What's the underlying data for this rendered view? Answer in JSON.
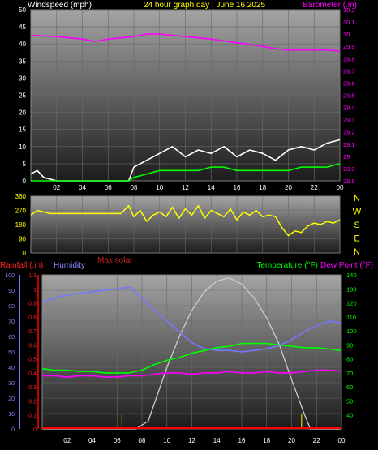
{
  "header": {
    "left_label": "Windspeed (mph)",
    "title": "24 hour graph day : June 16 2025",
    "right_label": "Barometer (.in)"
  },
  "middle": {
    "compass_labels": [
      "N",
      "W",
      "S",
      "E",
      "N"
    ],
    "max_solar_label": "Max solar"
  },
  "bottom_header": {
    "rainfall_label": "Rainfall (.in)",
    "humidity_label": "Humidity",
    "temperature_label": "Temperature (°F)",
    "dewpoint_label": "Dew Point (°F)"
  },
  "colors": {
    "background": "#000000",
    "windspeed": "#ffffff",
    "wind_avg": "#00ff00",
    "barometer": "#ff00ff",
    "direction": "#ffff00",
    "rain_axis": "#ff0000",
    "humidity": "#7777ff",
    "temperature": "#00ff00",
    "dewpoint": "#ff00ff",
    "solar": "#cccccc",
    "title": "#ffff00"
  },
  "chart_data": [
    {
      "type": "line",
      "panel": "top",
      "x_ticks": [
        "02",
        "04",
        "06",
        "08",
        "10",
        "12",
        "14",
        "16",
        "18",
        "20",
        "22",
        "00"
      ],
      "y_left": {
        "label": "Windspeed (mph)",
        "range": [
          0,
          50
        ],
        "ticks": [
          "0",
          "5",
          "10",
          "15",
          "20",
          "25",
          "30",
          "35",
          "40",
          "45",
          "50"
        ]
      },
      "y_right": {
        "label": "Barometer (.in)",
        "range": [
          28.8,
          30.2
        ],
        "ticks": [
          "28.8",
          "28.9",
          "29",
          "29.1",
          "29.2",
          "29.3",
          "29.4",
          "29.5",
          "29.6",
          "29.7",
          "29.8",
          "29.9",
          "30",
          "30.1",
          "30.2"
        ]
      },
      "series": [
        {
          "name": "Windspeed (mph)",
          "axis": "left",
          "x": [
            0.0,
            0.5,
            1.0,
            2.0,
            4.0,
            6.0,
            7.6,
            8.0,
            9.0,
            10.0,
            11.0,
            12.0,
            13.0,
            14.0,
            15.0,
            16.0,
            17.0,
            18.0,
            19.0,
            20.0,
            21.0,
            22.0,
            23.0,
            24.0
          ],
          "values": [
            2,
            3,
            1,
            0,
            0,
            0,
            0,
            4,
            6,
            8,
            10,
            7,
            9,
            8,
            10,
            7,
            9,
            8,
            6,
            9,
            10,
            9,
            11,
            12
          ]
        },
        {
          "name": "Wind average",
          "axis": "left",
          "x": [
            0,
            7.6,
            8,
            9,
            10,
            11,
            12,
            13,
            14,
            15,
            16,
            17,
            18,
            19,
            20,
            21,
            22,
            23,
            24
          ],
          "values": [
            0,
            0,
            1,
            2,
            3,
            3,
            3,
            3,
            4,
            4,
            3,
            3,
            3,
            3,
            3,
            4,
            4,
            4,
            5
          ]
        },
        {
          "name": "Barometer (.in)",
          "axis": "right",
          "x": [
            0,
            2,
            4,
            5,
            6,
            8,
            9,
            10,
            12,
            14,
            16,
            18,
            19,
            20,
            22,
            23,
            24
          ],
          "values": [
            29.99,
            29.98,
            29.96,
            29.94,
            29.96,
            29.98,
            30.0,
            30.0,
            29.98,
            29.96,
            29.93,
            29.9,
            29.88,
            29.87,
            29.87,
            29.87,
            29.86
          ]
        }
      ]
    },
    {
      "type": "line",
      "panel": "middle",
      "x_ticks": [
        "02",
        "04",
        "06",
        "08",
        "10",
        "12",
        "14",
        "16",
        "18",
        "20",
        "22",
        "00"
      ],
      "y_left": {
        "range": [
          0,
          360
        ],
        "ticks": [
          "0",
          "90",
          "180",
          "270",
          "360"
        ]
      },
      "series": [
        {
          "name": "Wind direction",
          "x": [
            0,
            0.5,
            1.5,
            3,
            5,
            7,
            7.6,
            8.0,
            8.5,
            9,
            9.5,
            10,
            10.5,
            11,
            11.5,
            12,
            12.5,
            13,
            13.5,
            14,
            14.5,
            15,
            15.5,
            16,
            16.5,
            17,
            17.5,
            18,
            18.5,
            19,
            19.5,
            20,
            20.5,
            21,
            21.5,
            22,
            22.5,
            23,
            23.5,
            24
          ],
          "values": [
            240,
            270,
            250,
            250,
            250,
            250,
            300,
            230,
            270,
            200,
            240,
            260,
            230,
            290,
            220,
            280,
            240,
            300,
            220,
            270,
            250,
            230,
            280,
            210,
            260,
            240,
            270,
            230,
            240,
            230,
            160,
            110,
            140,
            130,
            170,
            190,
            180,
            200,
            190,
            210
          ]
        }
      ]
    },
    {
      "type": "line",
      "panel": "bottom",
      "x_ticks": [
        "02",
        "04",
        "06",
        "08",
        "10",
        "12",
        "14",
        "16",
        "18",
        "20",
        "22",
        "00"
      ],
      "y_humidity": {
        "label": "Humidity",
        "range": [
          0,
          100
        ],
        "ticks": [
          "0",
          "10",
          "20",
          "30",
          "40",
          "50",
          "60",
          "70",
          "80",
          "90",
          "100"
        ]
      },
      "y_rain": {
        "label": "Rainfall (.in)",
        "range": [
          0,
          1.1
        ],
        "ticks": [
          "0",
          "0.1",
          "0.2",
          "0.3",
          "0.4",
          "0.5",
          "0.6",
          "0.7",
          "0.8",
          "0.9",
          "1",
          "1.1"
        ]
      },
      "y_temp": {
        "label": "Temperature (°F)",
        "range": [
          30,
          140
        ],
        "ticks": [
          "40",
          "50",
          "60",
          "70",
          "80",
          "90",
          "100",
          "110",
          "120",
          "130",
          "140"
        ]
      },
      "series": [
        {
          "name": "Humidity",
          "axis": "humidity",
          "x": [
            0,
            1,
            2,
            3,
            4,
            5,
            6,
            7,
            8,
            9,
            10,
            11,
            12,
            13,
            14,
            15,
            16,
            17,
            18,
            19,
            20,
            21,
            22,
            23,
            24
          ],
          "values": [
            82,
            85,
            87,
            88,
            89,
            90,
            91,
            92,
            85,
            77,
            70,
            63,
            56,
            52,
            51,
            51,
            50,
            51,
            52,
            54,
            58,
            63,
            67,
            70,
            69
          ]
        },
        {
          "name": "Temperature (°F)",
          "axis": "temp",
          "x": [
            0,
            1,
            2,
            3,
            4,
            5,
            6,
            7,
            8,
            9,
            10,
            11,
            12,
            13,
            14,
            15,
            16,
            17,
            18,
            19,
            20,
            21,
            22,
            23,
            24
          ],
          "values": [
            73,
            72,
            72,
            71,
            71,
            70,
            70,
            70,
            72,
            76,
            79,
            81,
            84,
            86,
            88,
            89,
            91,
            91,
            91,
            90,
            89,
            88,
            88,
            87,
            86
          ]
        },
        {
          "name": "Dew Point (°F)",
          "axis": "temp",
          "x": [
            0,
            1,
            2,
            3,
            4,
            5,
            6,
            7,
            8,
            9,
            10,
            11,
            12,
            13,
            14,
            15,
            16,
            17,
            18,
            19,
            20,
            21,
            22,
            23,
            24
          ],
          "values": [
            68,
            68,
            67,
            68,
            68,
            67,
            67,
            68,
            68,
            69,
            70,
            70,
            69,
            70,
            70,
            71,
            70,
            70,
            71,
            70,
            70,
            71,
            72,
            72,
            71
          ]
        },
        {
          "name": "Max solar",
          "axis": "solar",
          "x": [
            0,
            5,
            6.5,
            7.5,
            8.5,
            10,
            11,
            12,
            13,
            14,
            15,
            16,
            17,
            18,
            19,
            20,
            21,
            21.5,
            22,
            24
          ],
          "values": [
            0,
            0,
            0,
            0,
            5,
            40,
            60,
            77,
            89,
            96,
            98,
            94,
            85,
            72,
            55,
            32,
            10,
            0,
            0,
            0
          ]
        },
        {
          "name": "Rainfall (.in)",
          "axis": "rain",
          "x": [
            0,
            24
          ],
          "values": [
            0,
            0
          ]
        }
      ],
      "markers": [
        6.4,
        20.8
      ]
    }
  ]
}
